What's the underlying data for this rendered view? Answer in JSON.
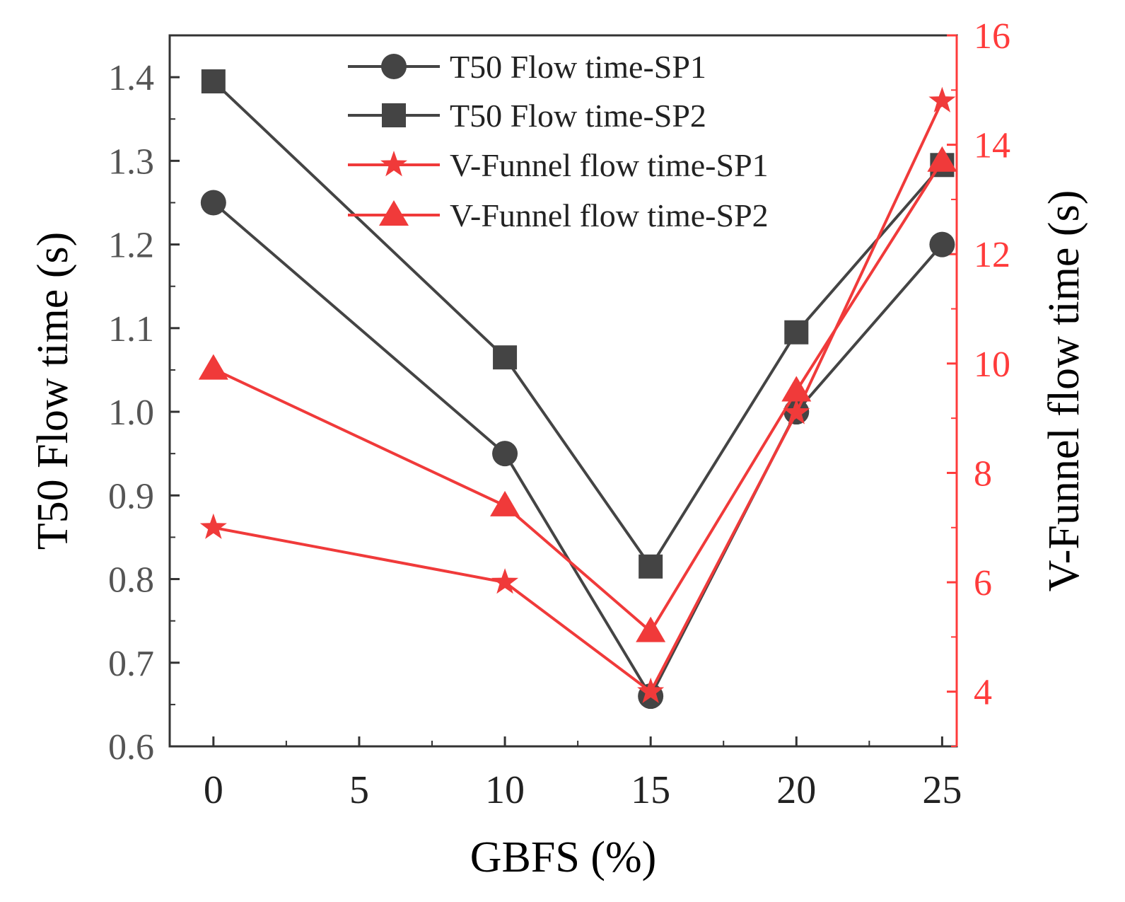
{
  "chart_data": {
    "type": "line",
    "title": "",
    "xlabel": "GBFS (%)",
    "ylabel_left": "T50 Flow time (s)",
    "ylabel_right": "V-Funnel flow time (s)",
    "x": [
      0,
      10,
      15,
      20,
      25
    ],
    "x_ticks": [
      0,
      5,
      10,
      15,
      20,
      25
    ],
    "xlim": [
      -1.5,
      25.5
    ],
    "ylim_left": [
      0.6,
      1.45
    ],
    "y_ticks_left": [
      0.6,
      0.7,
      0.8,
      0.9,
      1.0,
      1.1,
      1.2,
      1.3,
      1.4
    ],
    "y_tick_labels_left": [
      "0.6",
      "0.7",
      "0.8",
      "0.9",
      "1.0",
      "1.1",
      "1.2",
      "1.3",
      "1.4"
    ],
    "ylim_right": [
      3,
      16
    ],
    "y_ticks_right": [
      4,
      6,
      8,
      10,
      12,
      14,
      16
    ],
    "y_tick_labels_right": [
      "4",
      "6",
      "8",
      "10",
      "12",
      "14",
      "16"
    ],
    "legend_position": "top-center",
    "colors": {
      "dark": "#444444",
      "red": "#f03a3a",
      "right_axis": "#ff3b3b"
    },
    "series": [
      {
        "name": "T50 Flow time-SP1",
        "axis": "left",
        "marker": "circle",
        "color": "#444444",
        "values": [
          1.25,
          0.95,
          0.66,
          1.0,
          1.2
        ]
      },
      {
        "name": "T50 Flow time-SP2",
        "axis": "left",
        "marker": "square",
        "color": "#444444",
        "values": [
          1.395,
          1.065,
          0.815,
          1.095,
          1.295
        ]
      },
      {
        "name": "V-Funnel flow time-SP1",
        "axis": "right",
        "marker": "star",
        "color": "#f03a3a",
        "values": [
          7.0,
          6.0,
          4.0,
          9.1,
          14.8
        ]
      },
      {
        "name": "V-Funnel flow time-SP2",
        "axis": "right",
        "marker": "triangle",
        "color": "#f03a3a",
        "values": [
          9.9,
          7.4,
          5.1,
          9.5,
          13.7
        ]
      }
    ]
  }
}
